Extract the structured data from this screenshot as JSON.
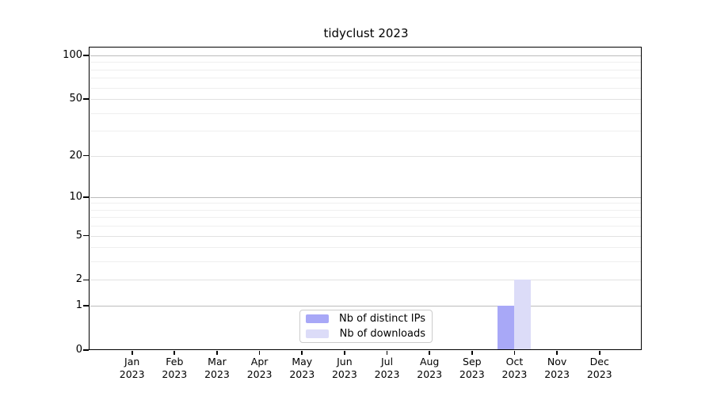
{
  "page": {
    "background": "#ffffff"
  },
  "chart_data": {
    "type": "bar",
    "title": "tidyclust 2023",
    "categories": [
      {
        "month": "Jan",
        "year": "2023"
      },
      {
        "month": "Feb",
        "year": "2023"
      },
      {
        "month": "Mar",
        "year": "2023"
      },
      {
        "month": "Apr",
        "year": "2023"
      },
      {
        "month": "May",
        "year": "2023"
      },
      {
        "month": "Jun",
        "year": "2023"
      },
      {
        "month": "Jul",
        "year": "2023"
      },
      {
        "month": "Aug",
        "year": "2023"
      },
      {
        "month": "Sep",
        "year": "2023"
      },
      {
        "month": "Oct",
        "year": "2023"
      },
      {
        "month": "Nov",
        "year": "2023"
      },
      {
        "month": "Dec",
        "year": "2023"
      }
    ],
    "series": [
      {
        "name": "Nb of distinct IPs",
        "color": "#a8a8f7",
        "values": [
          0,
          0,
          0,
          0,
          0,
          0,
          0,
          0,
          0,
          1,
          0,
          0
        ]
      },
      {
        "name": "Nb of downloads",
        "color": "#dcdcf8",
        "values": [
          0,
          0,
          0,
          0,
          0,
          0,
          0,
          0,
          0,
          2,
          0,
          0
        ]
      }
    ],
    "yscale": "log1p",
    "yticks": [
      0,
      1,
      2,
      5,
      10,
      20,
      50,
      100
    ],
    "major_yticks": [
      1,
      10,
      100
    ],
    "minor_yticks": [
      3,
      4,
      6,
      7,
      8,
      9,
      30,
      40,
      60,
      70,
      80,
      90
    ],
    "ylim": [
      0,
      113
    ],
    "grid": true,
    "legend": {
      "position": "lower center",
      "border_color": "#cccccc"
    },
    "colors": {
      "axis": "#000000",
      "grid_major": "#bcbcbc",
      "grid_mid": "#e2e2e2",
      "grid_minor": "#efefef"
    }
  }
}
